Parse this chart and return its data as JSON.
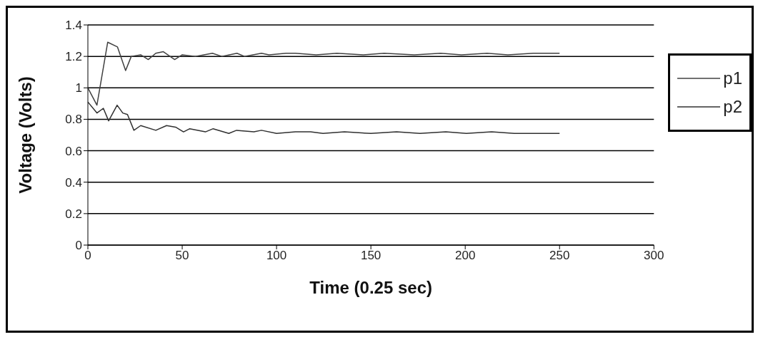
{
  "chart_data": {
    "type": "line",
    "xlabel": "Time (0.25 sec)",
    "ylabel": "Voltage (Volts)",
    "xlim": [
      0,
      300
    ],
    "xticks": [
      0,
      50,
      100,
      150,
      200,
      250,
      300
    ],
    "ylim": [
      0,
      1.4
    ],
    "yticks": [
      0,
      0.2,
      0.4,
      0.6,
      0.8,
      1,
      1.2,
      1.4
    ],
    "grid": "y",
    "legend": "right",
    "marker": "none",
    "line_style": "solid",
    "series": [
      {
        "name": "p1",
        "color": "#404040",
        "x": [
          0,
          4.8,
          10.5,
          15.7,
          20,
          23,
          28,
          32,
          36,
          40,
          46,
          50,
          57,
          66,
          71,
          79,
          83,
          92,
          96,
          105,
          110,
          121,
          132,
          146,
          157,
          173,
          187,
          198,
          211.6,
          222.6,
          236,
          250
        ],
        "values": [
          1.0,
          0.89,
          1.29,
          1.26,
          1.11,
          1.2,
          1.21,
          1.18,
          1.22,
          1.23,
          1.18,
          1.21,
          1.2,
          1.22,
          1.2,
          1.22,
          1.2,
          1.22,
          1.21,
          1.22,
          1.22,
          1.21,
          1.22,
          1.21,
          1.22,
          1.21,
          1.22,
          1.21,
          1.22,
          1.21,
          1.22,
          1.22
        ]
      },
      {
        "name": "p2",
        "color": "#303030",
        "x": [
          0,
          4.8,
          8.2,
          11,
          15.5,
          18.5,
          21,
          24.4,
          28,
          36,
          41.7,
          46.5,
          50.7,
          54,
          62.3,
          66.4,
          74.7,
          78.8,
          88,
          92,
          100,
          110,
          118,
          124.6,
          136,
          150,
          163.6,
          176,
          189.7,
          200.6,
          214,
          226,
          239,
          250
        ],
        "values": [
          0.91,
          0.84,
          0.87,
          0.79,
          0.89,
          0.84,
          0.83,
          0.73,
          0.76,
          0.73,
          0.76,
          0.75,
          0.72,
          0.74,
          0.72,
          0.74,
          0.71,
          0.73,
          0.72,
          0.73,
          0.71,
          0.72,
          0.72,
          0.71,
          0.72,
          0.71,
          0.72,
          0.71,
          0.72,
          0.71,
          0.72,
          0.71,
          0.71,
          0.71
        ]
      }
    ]
  }
}
